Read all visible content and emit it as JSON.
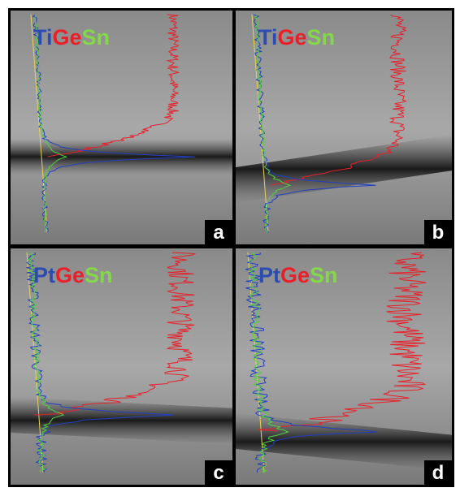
{
  "panels": [
    {
      "elements": [
        "Ti",
        "Ge",
        "Sn"
      ],
      "label": "a"
    },
    {
      "elements": [
        "Ti",
        "Ge",
        "Sn"
      ],
      "label": "b"
    },
    {
      "elements": [
        "Pt",
        "Ge",
        "Sn"
      ],
      "label": "c"
    },
    {
      "elements": [
        "Pt",
        "Ge",
        "Sn"
      ],
      "label": "d"
    }
  ]
}
